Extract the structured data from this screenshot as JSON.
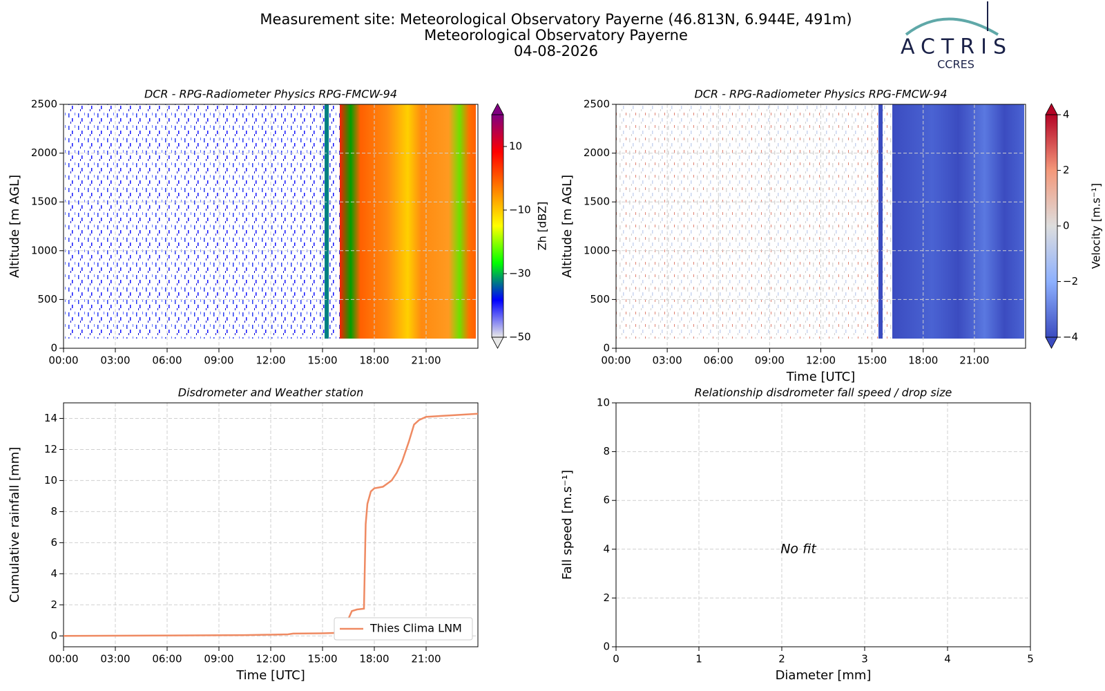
{
  "header": {
    "title_lines": [
      "Measurement site: Meteorological Observatory Payerne (46.813N, 6.944E, 491m)",
      "Meteorological Observatory Payerne",
      "04-08-2026"
    ],
    "logo": "ACTRIS",
    "logo_sub": "CCRES"
  },
  "chart_data": [
    {
      "type": "heatmap",
      "title": "DCR - RPG-Radiometer Physics RPG-FMCW-94",
      "ylabel": "Altitude [m AGL]",
      "xlim": [
        0,
        24
      ],
      "xticks": [
        {
          "value": 0,
          "label": "00:00"
        },
        {
          "value": 3,
          "label": "03:00"
        },
        {
          "value": 6,
          "label": "06:00"
        },
        {
          "value": 9,
          "label": "09:00"
        },
        {
          "value": 12,
          "label": "12:00"
        },
        {
          "value": 15,
          "label": "15:00"
        },
        {
          "value": 18,
          "label": "18:00"
        },
        {
          "value": 21,
          "label": "21:00"
        }
      ],
      "ylim": [
        0,
        2500
      ],
      "yticks": [
        0,
        500,
        1000,
        1500,
        2000,
        2500
      ],
      "grid": true,
      "colorbar": {
        "label": "Zh [dBZ]",
        "lim": [
          -50,
          20
        ],
        "ticks": [
          {
            "value": -50,
            "label": "−50"
          },
          {
            "value": -30,
            "label": "−30"
          },
          {
            "value": -10,
            "label": "−10"
          },
          10
        ],
        "colors": [
          "#e8e8e8",
          "#0000ff",
          "#00ff00",
          "#ffff00",
          "#ff8000",
          "#ff0000",
          "#800080"
        ]
      }
    },
    {
      "type": "heatmap",
      "title": "DCR - RPG-Radiometer Physics RPG-FMCW-94",
      "ylabel": "Altitude [m AGL]",
      "xlabel": "Time [UTC]",
      "xlim": [
        0,
        24
      ],
      "xticks": [
        {
          "value": 0,
          "label": "00:00"
        },
        {
          "value": 3,
          "label": "03:00"
        },
        {
          "value": 6,
          "label": "06:00"
        },
        {
          "value": 9,
          "label": "09:00"
        },
        {
          "value": 12,
          "label": "12:00"
        },
        {
          "value": 15,
          "label": "15:00"
        },
        {
          "value": 18,
          "label": "18:00"
        },
        {
          "value": 21,
          "label": "21:00"
        }
      ],
      "ylim": [
        0,
        2500
      ],
      "yticks": [
        0,
        500,
        1000,
        1500,
        2000,
        2500
      ],
      "grid": true,
      "colorbar": {
        "label": "Velocity [m.s⁻¹]",
        "lim": [
          -4,
          4
        ],
        "ticks": [
          {
            "value": -4,
            "label": "−4"
          },
          {
            "value": -2,
            "label": "−2"
          },
          0,
          2,
          4
        ],
        "colors": [
          "#3b4cc0",
          "#8db0fe",
          "#dddddd",
          "#f4987a",
          "#b40426"
        ]
      }
    },
    {
      "type": "line",
      "title": "Disdrometer and Weather station",
      "xlabel": "Time [UTC]",
      "ylabel": "Cumulative rainfall [mm]",
      "xlim": [
        0,
        24
      ],
      "xticks": [
        {
          "value": 0,
          "label": "00:00"
        },
        {
          "value": 3,
          "label": "03:00"
        },
        {
          "value": 6,
          "label": "06:00"
        },
        {
          "value": 9,
          "label": "09:00"
        },
        {
          "value": 12,
          "label": "12:00"
        },
        {
          "value": 15,
          "label": "15:00"
        },
        {
          "value": 18,
          "label": "18:00"
        },
        {
          "value": 21,
          "label": "21:00"
        }
      ],
      "ylim": [
        -0.7,
        15
      ],
      "yticks": [
        0,
        2,
        4,
        6,
        8,
        10,
        12,
        14
      ],
      "grid": true,
      "legend": "lower right",
      "x": [
        0,
        10.5,
        12,
        13,
        13.3,
        15,
        16,
        16.5,
        16.7,
        17,
        17.4,
        17.5,
        17.6,
        17.8,
        18,
        18.5,
        19,
        19.3,
        19.6,
        20,
        20.3,
        20.6,
        21,
        22.5,
        24
      ],
      "series": [
        {
          "name": "Thies Clima LNM",
          "color": "#ef8a62",
          "values": [
            0,
            0.05,
            0.08,
            0.1,
            0.15,
            0.17,
            0.2,
            1.1,
            1.6,
            1.7,
            1.75,
            7.2,
            8.5,
            9.3,
            9.5,
            9.6,
            10,
            10.5,
            11.2,
            12.5,
            13.6,
            13.9,
            14.1,
            14.2,
            14.3
          ]
        }
      ]
    },
    {
      "type": "scatter",
      "title": "Relationship disdrometer fall speed / drop size",
      "xlabel": "Diameter [mm]",
      "ylabel": "Fall speed [m.s⁻¹]",
      "xlim": [
        0,
        5
      ],
      "xticks": [
        0,
        1,
        2,
        3,
        4,
        5
      ],
      "ylim": [
        0,
        10
      ],
      "yticks": [
        0,
        2,
        4,
        6,
        8,
        10
      ],
      "grid": true,
      "annotation": "No fit"
    }
  ]
}
